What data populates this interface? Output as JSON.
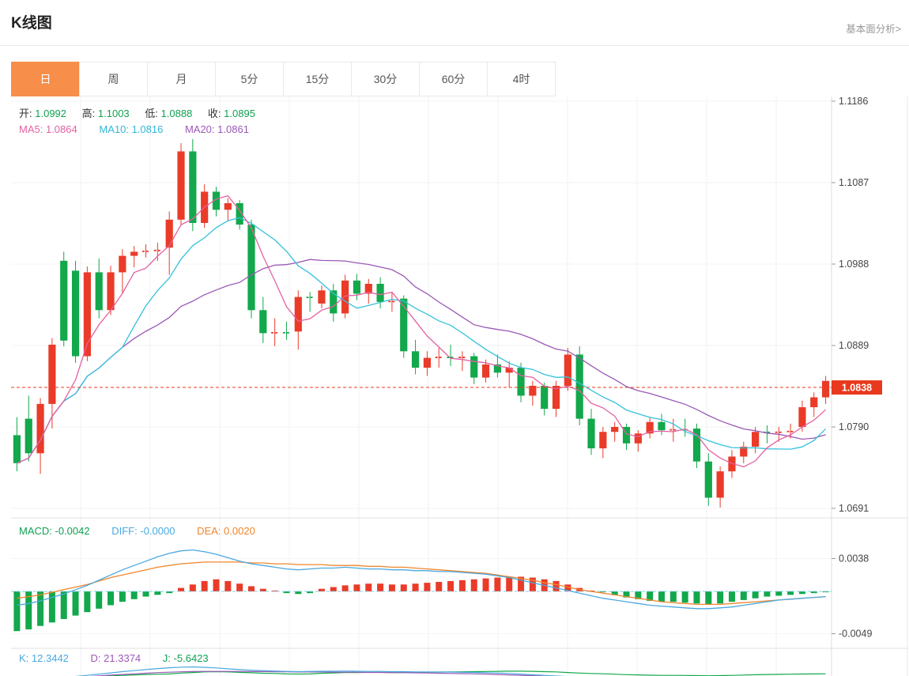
{
  "header": {
    "title": "K线图",
    "link": "基本面分析>"
  },
  "tabs": {
    "items": [
      "日",
      "周",
      "月",
      "5分",
      "15分",
      "30分",
      "60分",
      "4时"
    ],
    "active_index": 0
  },
  "main_legend": {
    "ohlc": [
      {
        "label": "开:",
        "value": "1.0992"
      },
      {
        "label": "高:",
        "value": "1.1003"
      },
      {
        "label": "低:",
        "value": "1.0888"
      },
      {
        "label": "收:",
        "value": "1.0895"
      }
    ],
    "ma": [
      {
        "label": "MA5:",
        "value": "1.0864"
      },
      {
        "label": "MA10:",
        "value": "1.0816"
      },
      {
        "label": "MA20:",
        "value": "1.0861"
      }
    ]
  },
  "macd_legend": [
    {
      "label": "MACD:",
      "value": "-0.0042"
    },
    {
      "label": "DIFF:",
      "value": "-0.0000"
    },
    {
      "label": "DEA:",
      "value": "0.0020"
    }
  ],
  "kdj_legend": [
    {
      "label": "K:",
      "value": "12.3442"
    },
    {
      "label": "D:",
      "value": "21.3374"
    },
    {
      "label": "J:",
      "value": "-5.6423"
    }
  ],
  "price_tag": "1.0838",
  "colors": {
    "up": "#ea3b29",
    "down": "#12a84b",
    "ma5": "#e560a2",
    "ma10": "#35c1dc",
    "ma20": "#9b59b6",
    "diff": "#4aa8e0",
    "dea": "#f0862c",
    "tag": "#e8391d",
    "active_tab": "#f78f4a",
    "kdj_k": "#4aa8e0",
    "kdj_d": "#9b59b6",
    "kdj_j": "#12a84b"
  },
  "chart_data": {
    "type": "candlestick",
    "title": "K线图",
    "timeframe": "日",
    "panels": [
      "price",
      "MACD",
      "KDJ"
    ],
    "legend_position": "top-left",
    "grid": true,
    "price_axis": {
      "tick_labels": [
        "1.1186",
        "1.1087",
        "1.0988",
        "1.0889",
        "1.0790",
        "1.0691"
      ],
      "tick_values": [
        1.1186,
        1.1087,
        1.0988,
        1.0889,
        1.079,
        1.0691
      ]
    },
    "last_price": 1.0838,
    "ohlc_readout": {
      "open": 1.0992,
      "high": 1.1003,
      "low": 1.0888,
      "close": 1.0895
    },
    "ma_readout": {
      "ma5": 1.0864,
      "ma10": 1.0816,
      "ma20": 1.0861
    },
    "candles": [
      [
        1.078,
        1.0802,
        1.0736,
        1.0746
      ],
      [
        1.08,
        1.0828,
        1.0748,
        1.0758
      ],
      [
        1.0758,
        1.0825,
        1.0733,
        1.0818
      ],
      [
        1.0818,
        1.0898,
        1.0788,
        1.089
      ],
      [
        1.0992,
        1.1003,
        1.0888,
        1.0895
      ],
      [
        1.098,
        1.0992,
        1.0868,
        1.0876
      ],
      [
        1.0876,
        1.0985,
        1.087,
        1.0978
      ],
      [
        1.0978,
        1.0995,
        1.0922,
        1.0932
      ],
      [
        1.0932,
        1.0986,
        1.0926,
        1.0978
      ],
      [
        1.0978,
        1.1006,
        1.0952,
        1.0998
      ],
      [
        1.0998,
        1.101,
        1.0984,
        1.1003
      ],
      [
        1.1003,
        1.1012,
        1.0996,
        1.1004
      ],
      [
        1.1004,
        1.1014,
        1.0992,
        1.1005
      ],
      [
        1.1008,
        1.1052,
        1.0975,
        1.1042
      ],
      [
        1.1042,
        1.1135,
        1.1035,
        1.1125
      ],
      [
        1.1125,
        1.114,
        1.1028,
        1.1038
      ],
      [
        1.1038,
        1.1085,
        1.1032,
        1.1076
      ],
      [
        1.1076,
        1.1082,
        1.1046,
        1.1054
      ],
      [
        1.1054,
        1.1068,
        1.104,
        1.1062
      ],
      [
        1.1062,
        1.1066,
        1.103,
        1.1036
      ],
      [
        1.1036,
        1.1042,
        1.0922,
        1.0932
      ],
      [
        1.0932,
        1.0948,
        1.0892,
        1.0904
      ],
      [
        1.0904,
        1.0922,
        1.0888,
        1.0905
      ],
      [
        1.0905,
        1.0918,
        1.0896,
        1.0904
      ],
      [
        1.0906,
        1.0956,
        1.0884,
        1.0948
      ],
      [
        1.0948,
        1.0954,
        1.093,
        1.0947
      ],
      [
        1.094,
        1.0962,
        1.0934,
        1.0956
      ],
      [
        1.0956,
        1.0964,
        1.0918,
        1.0928
      ],
      [
        1.0928,
        1.0975,
        1.0922,
        1.0968
      ],
      [
        1.0968,
        1.0976,
        1.0944,
        1.0952
      ],
      [
        1.0952,
        1.097,
        1.094,
        1.0964
      ],
      [
        1.0964,
        1.0972,
        1.0934,
        1.0942
      ],
      [
        1.0942,
        1.0954,
        1.093,
        1.0943
      ],
      [
        1.0946,
        1.095,
        1.0874,
        1.0882
      ],
      [
        1.0882,
        1.0896,
        1.0854,
        1.0862
      ],
      [
        1.0862,
        1.0882,
        1.0852,
        1.0874
      ],
      [
        1.0874,
        1.0886,
        1.0862,
        1.0875
      ],
      [
        1.0875,
        1.089,
        1.0864,
        1.0874
      ],
      [
        1.0874,
        1.0882,
        1.0858,
        1.0875
      ],
      [
        1.0876,
        1.088,
        1.0842,
        1.085
      ],
      [
        1.085,
        1.0872,
        1.0844,
        1.0866
      ],
      [
        1.0866,
        1.0878,
        1.085,
        1.0856
      ],
      [
        1.0856,
        1.087,
        1.0838,
        1.0862
      ],
      [
        1.0862,
        1.0868,
        1.082,
        1.0828
      ],
      [
        1.0828,
        1.0846,
        1.0816,
        1.084
      ],
      [
        1.084,
        1.0844,
        1.0804,
        1.0812
      ],
      [
        1.0812,
        1.0846,
        1.0802,
        1.084
      ],
      [
        1.084,
        1.0886,
        1.0834,
        1.0878
      ],
      [
        1.0878,
        1.0888,
        1.0792,
        1.08
      ],
      [
        1.08,
        1.0812,
        1.0756,
        1.0764
      ],
      [
        1.0764,
        1.079,
        1.0752,
        1.0784
      ],
      [
        1.0784,
        1.0796,
        1.0772,
        1.079
      ],
      [
        1.079,
        1.0794,
        1.0762,
        1.077
      ],
      [
        1.077,
        1.0786,
        1.076,
        1.0782
      ],
      [
        1.0782,
        1.0802,
        1.0776,
        1.0796
      ],
      [
        1.0796,
        1.0806,
        1.078,
        1.0786
      ],
      [
        1.0786,
        1.08,
        1.0772,
        1.0787
      ],
      [
        1.0787,
        1.08,
        1.0778,
        1.0786
      ],
      [
        1.0788,
        1.0794,
        1.074,
        1.0748
      ],
      [
        1.0748,
        1.0758,
        1.0694,
        1.0704
      ],
      [
        1.0704,
        1.0742,
        1.0692,
        1.0736
      ],
      [
        1.0736,
        1.0762,
        1.0728,
        1.0754
      ],
      [
        1.0754,
        1.0772,
        1.0746,
        1.0766
      ],
      [
        1.0766,
        1.079,
        1.0758,
        1.0784
      ],
      [
        1.0784,
        1.0792,
        1.077,
        1.0783
      ],
      [
        1.0783,
        1.079,
        1.0772,
        1.0784
      ],
      [
        1.0784,
        1.0794,
        1.0776,
        1.0785
      ],
      [
        1.079,
        1.0822,
        1.0784,
        1.0814
      ],
      [
        1.0814,
        1.0832,
        1.0802,
        1.0826
      ],
      [
        1.0826,
        1.0852,
        1.0818,
        1.0846
      ]
    ],
    "macd": {
      "readout": {
        "macd": -0.0042,
        "diff": -0.0,
        "dea": 0.002
      },
      "axis_labels": [
        "0.0038",
        "-0.0049"
      ],
      "axis_values": [
        0.0038,
        -0.0049
      ],
      "hist": [
        -0.0046,
        -0.0044,
        -0.004,
        -0.0036,
        -0.0032,
        -0.0028,
        -0.0024,
        -0.002,
        -0.0016,
        -0.0012,
        -0.0009,
        -0.0006,
        -0.0004,
        -0.0002,
        0.0004,
        0.0008,
        0.0012,
        0.0014,
        0.0012,
        0.0009,
        0.0006,
        0.0003,
        0.0001,
        -0.0002,
        -0.0003,
        -0.0002,
        0.0003,
        0.0005,
        0.0007,
        0.0008,
        0.0009,
        0.0009,
        0.0008,
        0.0008,
        0.0009,
        0.001,
        0.0011,
        0.0012,
        0.0013,
        0.0014,
        0.0015,
        0.0016,
        0.0017,
        0.0017,
        0.0016,
        0.0014,
        0.0012,
        0.0008,
        0.0004,
        0.0001,
        -0.0001,
        -0.0004,
        -0.0007,
        -0.0009,
        -0.0011,
        -0.0012,
        -0.0012,
        -0.0013,
        -0.0014,
        -0.0015,
        -0.0014,
        -0.0012,
        -0.001,
        -0.0008,
        -0.0006,
        -0.0005,
        -0.0004,
        -0.0003,
        -0.0002,
        -0.0001
      ],
      "diff_line": [
        -0.0016,
        -0.0014,
        -0.0011,
        -0.0007,
        -0.0003,
        0.0002,
        0.0007,
        0.0013,
        0.0019,
        0.0025,
        0.003,
        0.0035,
        0.004,
        0.0044,
        0.0047,
        0.0048,
        0.0046,
        0.0043,
        0.0039,
        0.0035,
        0.0032,
        0.003,
        0.0028,
        0.0026,
        0.0025,
        0.0026,
        0.0027,
        0.0027,
        0.0028,
        0.0027,
        0.0026,
        0.0026,
        0.0025,
        0.0025,
        0.0024,
        0.0024,
        0.0023,
        0.0023,
        0.0022,
        0.0021,
        0.002,
        0.0018,
        0.0016,
        0.0013,
        0.001,
        0.0007,
        0.0004,
        0.0001,
        -0.0002,
        -0.0005,
        -0.0008,
        -0.001,
        -0.0012,
        -0.0014,
        -0.0016,
        -0.0017,
        -0.0018,
        -0.0019,
        -0.002,
        -0.002,
        -0.0019,
        -0.0018,
        -0.0016,
        -0.0014,
        -0.0012,
        -0.001,
        -0.0009,
        -0.0008,
        -0.0007,
        -0.0006
      ],
      "dea_line": [
        -0.0008,
        -0.0006,
        -0.0004,
        -0.0001,
        0.0002,
        0.0005,
        0.0008,
        0.0012,
        0.0016,
        0.0019,
        0.0022,
        0.0025,
        0.0028,
        0.003,
        0.0032,
        0.0033,
        0.0034,
        0.0034,
        0.0034,
        0.0034,
        0.0033,
        0.0033,
        0.0032,
        0.0032,
        0.0031,
        0.0031,
        0.0031,
        0.003,
        0.003,
        0.003,
        0.0029,
        0.0029,
        0.0028,
        0.0028,
        0.0027,
        0.0026,
        0.0025,
        0.0024,
        0.0023,
        0.0022,
        0.0021,
        0.0019,
        0.0017,
        0.0015,
        0.0013,
        0.001,
        0.0008,
        0.0005,
        0.0002,
        0.0,
        -0.0002,
        -0.0004,
        -0.0006,
        -0.0008,
        -0.001,
        -0.0012,
        -0.0013,
        -0.0014,
        -0.0015,
        -0.0015,
        -0.0015,
        -0.0014,
        -0.0013,
        -0.0012,
        -0.0011,
        -0.001,
        -0.0009,
        -0.0008,
        -0.0007,
        -0.0006
      ]
    },
    "kdj": {
      "k": 12.3442,
      "d": 21.3374,
      "j": -5.6423
    }
  }
}
